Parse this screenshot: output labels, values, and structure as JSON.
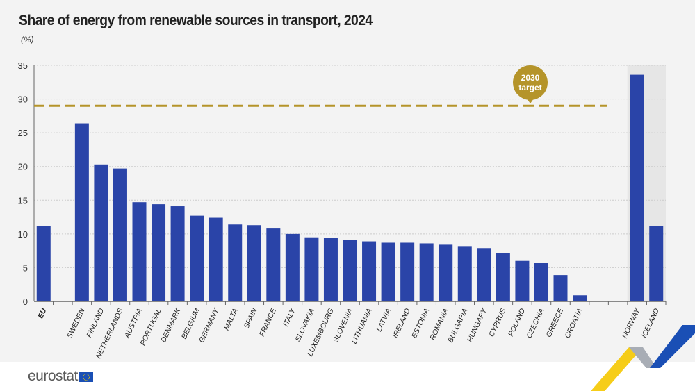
{
  "title": "Share of energy from renewable sources in transport, 2024",
  "unit": "(%)",
  "brand": "eurostat",
  "colors": {
    "bar": "#2a44a8",
    "target": "#b5942a",
    "grid": "#cccccc",
    "shade": "#e6e6e6"
  },
  "chart_data": {
    "type": "bar",
    "title": "Share of energy from renewable sources in transport, 2024",
    "ylabel": "(%)",
    "ylim": [
      0,
      35
    ],
    "yticks": [
      0,
      5,
      10,
      15,
      20,
      25,
      30,
      35
    ],
    "grid": true,
    "categories": [
      "EU",
      "SWEDEN",
      "FINLAND",
      "NETHERLANDS",
      "AUSTRIA",
      "PORTUGAL",
      "DENMARK",
      "BELGIUM",
      "GERMANY",
      "MALTA",
      "SPAIN",
      "FRANCE",
      "ITALY",
      "SLOVAKIA",
      "LUXEMBOURG",
      "SLOVENIA",
      "LITHUANIA",
      "LATVIA",
      "IRELAND",
      "ESTONIA",
      "ROMANIA",
      "BULGARIA",
      "HUNGARY",
      "CYPRUS",
      "POLAND",
      "CZECHIA",
      "GREECE",
      "CROATIA",
      "NORWAY",
      "ICELAND"
    ],
    "values": [
      11.2,
      26.4,
      20.3,
      19.7,
      14.7,
      14.4,
      14.1,
      12.7,
      12.4,
      11.4,
      11.3,
      10.8,
      10.0,
      9.5,
      9.4,
      9.1,
      8.9,
      8.7,
      8.7,
      8.6,
      8.4,
      8.2,
      7.9,
      7.2,
      6.0,
      5.7,
      3.9,
      0.9,
      33.6,
      11.2
    ],
    "target": {
      "value": 29,
      "label_line1": "2030",
      "label_line2": "target"
    }
  }
}
